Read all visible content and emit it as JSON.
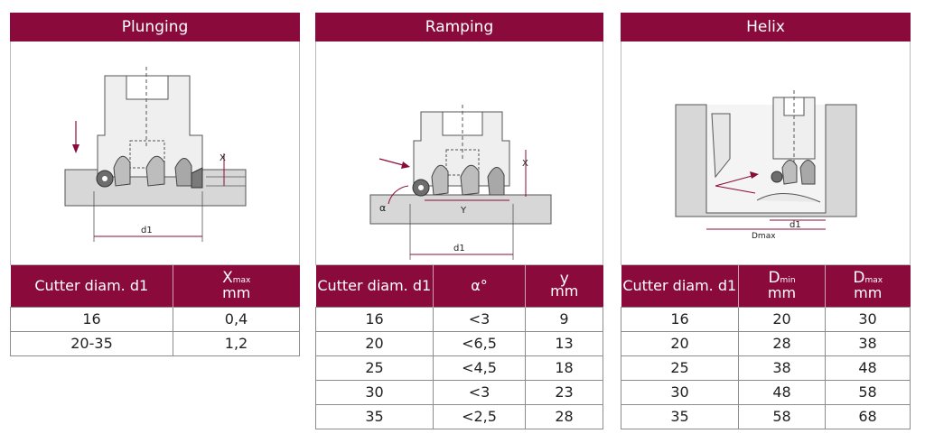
{
  "panels": [
    {
      "title": "Plunging",
      "headers": [
        {
          "main": "Cutter diam. d1",
          "sub": "",
          "unit": ""
        },
        {
          "main": "X",
          "sub": "max",
          "unit": "mm"
        }
      ],
      "rows": [
        [
          "16",
          "0,4"
        ],
        [
          "20-35",
          "1,2"
        ]
      ],
      "labels": {
        "x": "X",
        "d1": "d1"
      }
    },
    {
      "title": "Ramping",
      "headers": [
        {
          "main": "Cutter diam. d1",
          "sub": "",
          "unit": ""
        },
        {
          "main": "α°",
          "sub": "",
          "unit": ""
        },
        {
          "main": "y",
          "sub": "",
          "unit": "mm"
        }
      ],
      "rows": [
        [
          "16",
          "<3",
          "9"
        ],
        [
          "20",
          "<6,5",
          "13"
        ],
        [
          "25",
          "<4,5",
          "18"
        ],
        [
          "30",
          "<3",
          "23"
        ],
        [
          "35",
          "<2,5",
          "28"
        ]
      ],
      "labels": {
        "alpha": "α",
        "x": "X",
        "y": "Y",
        "d1": "d1"
      }
    },
    {
      "title": "Helix",
      "headers": [
        {
          "main": "Cutter diam. d1",
          "sub": "",
          "unit": ""
        },
        {
          "main": "D",
          "sub": "min",
          "unit": "mm"
        },
        {
          "main": "D",
          "sub": "max",
          "unit": "mm"
        }
      ],
      "rows": [
        [
          "16",
          "20",
          "30"
        ],
        [
          "20",
          "28",
          "38"
        ],
        [
          "25",
          "38",
          "48"
        ],
        [
          "30",
          "48",
          "58"
        ],
        [
          "35",
          "58",
          "68"
        ]
      ],
      "labels": {
        "d1": "d1",
        "dmax": "Dmax"
      }
    }
  ],
  "colors": {
    "header": "#8a0b3b",
    "dimension": "#8a0b3b",
    "grid": "#8c8c8c"
  }
}
